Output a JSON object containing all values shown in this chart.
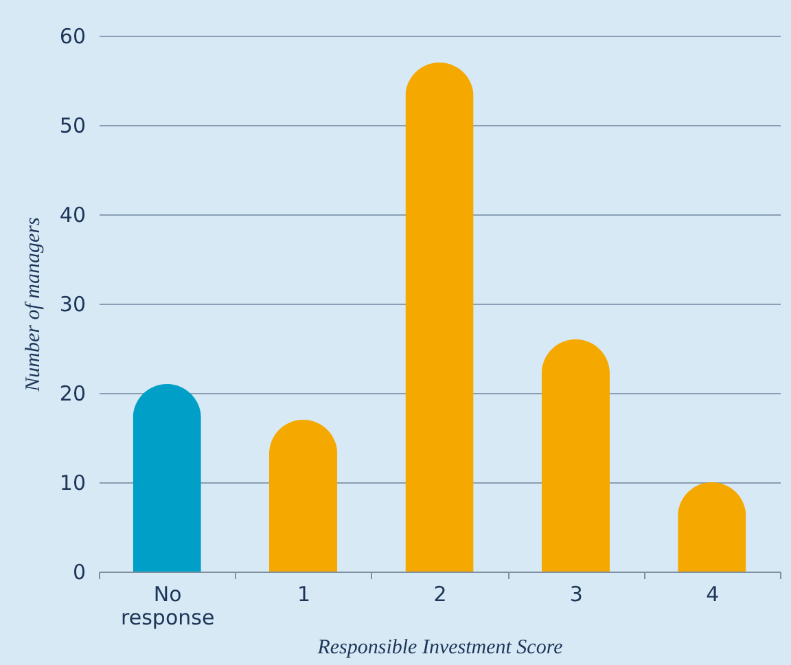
{
  "chart_data": {
    "type": "bar",
    "xlabel": "Responsible Investment Score",
    "ylabel": "Number of managers",
    "categories": [
      "No response",
      "1",
      "2",
      "3",
      "4"
    ],
    "values": [
      21,
      17,
      57,
      26,
      10
    ],
    "colors": [
      "#009fc7",
      "#f5a800",
      "#f5a800",
      "#f5a800",
      "#f5a800"
    ],
    "ylim": [
      0,
      60
    ],
    "yticks": [
      0,
      10,
      20,
      30,
      40,
      50,
      60
    ],
    "grid": "y",
    "legend": false
  }
}
